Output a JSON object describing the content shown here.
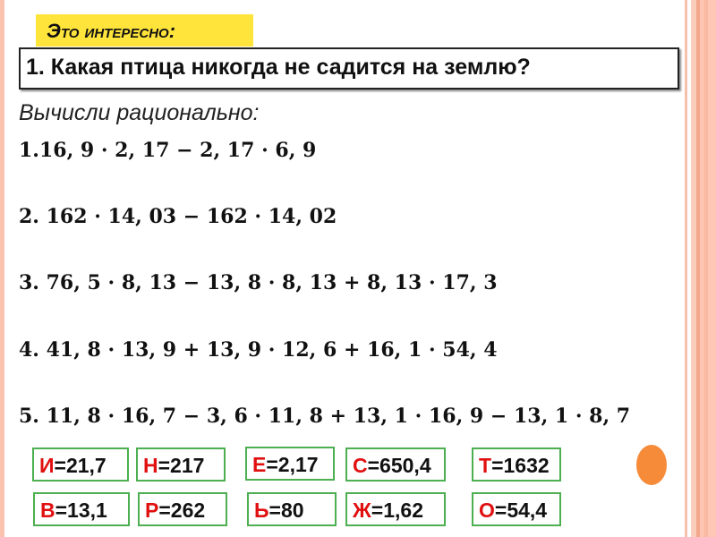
{
  "header": {
    "badge": "Это интересно:",
    "question": "1. Какая птица никогда не садится на землю?"
  },
  "instruction": "Вычисли рационально:",
  "expressions": [
    "1.16, 9 · 2, 17 − 2, 17 · 6, 9",
    "2. 162 · 14, 03 − 162 · 14, 02",
    "3. 76, 5 · 8, 13 − 13, 8 · 8, 13 + 8, 13 · 17, 3",
    "4. 41, 8 · 13, 9 + 13, 9 · 12, 6 + 16, 1 · 54, 4",
    "5. 11, 8 · 16, 7 − 3, 6 · 11, 8 + 13, 1 · 16, 9 − 13, 1 · 8, 7"
  ],
  "answers": [
    {
      "letter": "И",
      "value": "=21,7"
    },
    {
      "letter": "Н",
      "value": "=217"
    },
    {
      "letter": "Е",
      "value": "=2,17"
    },
    {
      "letter": "С",
      "value": "=650,4"
    },
    {
      "letter": "Т",
      "value": "=1632"
    },
    {
      "letter": "В",
      "value": "=13,1"
    },
    {
      "letter": "Р",
      "value": "=262"
    },
    {
      "letter": "Ь",
      "value": "=80"
    },
    {
      "letter": "Ж",
      "value": "=1,62"
    },
    {
      "letter": "О",
      "value": "=54,4"
    }
  ],
  "colors": {
    "badge": "#ffe53b",
    "letter": "#e01010",
    "card_border": "#4caf50",
    "accent_dot": "#f68b3a",
    "border": "#f9c3b0"
  }
}
